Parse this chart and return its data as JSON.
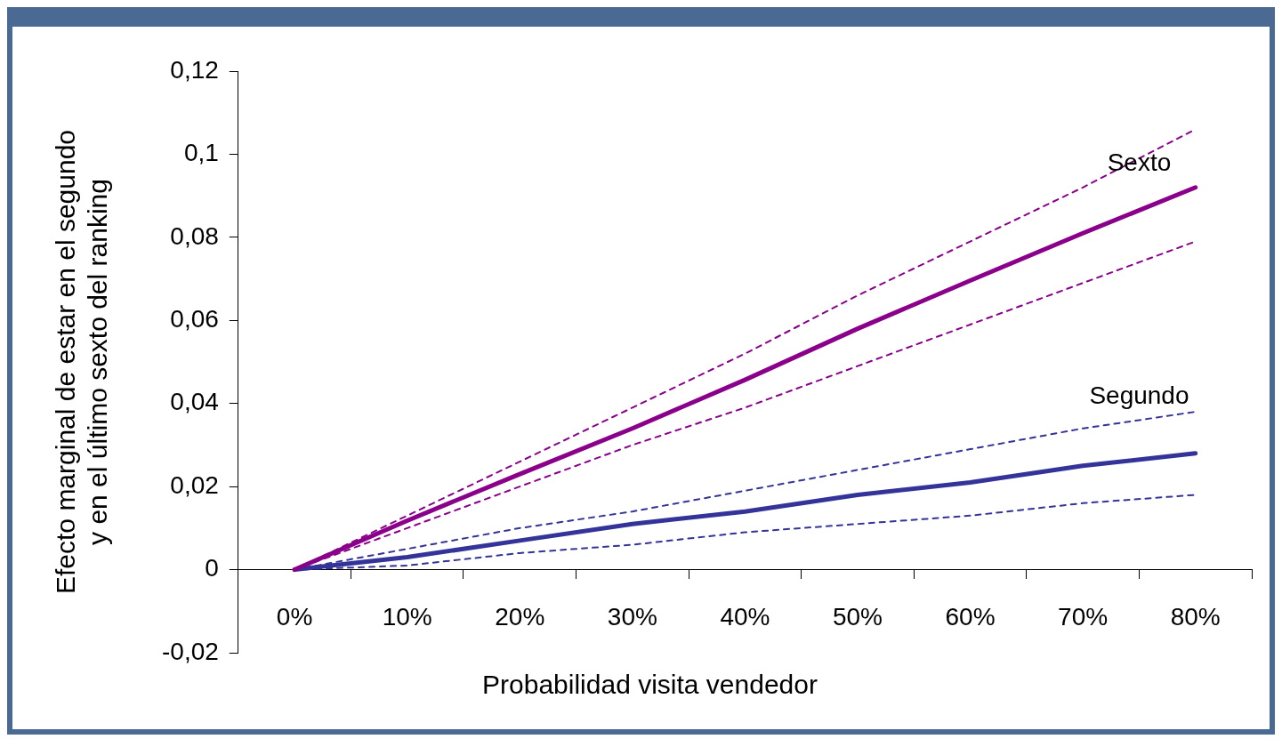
{
  "chart_data": {
    "type": "line",
    "xlabel": "Probabilidad visita vendedor",
    "ylabel": "Efecto marginal de estar en el segundo\ny en el último sexto del ranking",
    "categories": [
      "0%",
      "10%",
      "20%",
      "30%",
      "40%",
      "50%",
      "60%",
      "70%",
      "80%"
    ],
    "ylim": [
      -0.02,
      0.12
    ],
    "yticks": [
      {
        "value": -0.02,
        "label": "-0,02"
      },
      0,
      {
        "value": 0.02,
        "label": "0,02"
      },
      {
        "value": 0.04,
        "label": "0,04"
      },
      {
        "value": 0.06,
        "label": "0,06"
      },
      {
        "value": 0.08,
        "label": "0,08"
      },
      {
        "value": 0.1,
        "label": "0,1"
      },
      {
        "value": 0.12,
        "label": "0,12"
      }
    ],
    "grid": false,
    "legend": false,
    "marker": "none",
    "series": [
      {
        "color": "#8b008b",
        "line_style": "dashed",
        "values": [
          0,
          0.013,
          0.026,
          0.039,
          0.052,
          0.066,
          0.079,
          0.092,
          0.106
        ]
      },
      {
        "color": "#8b008b",
        "line_style": "dashed",
        "values": [
          0,
          0.01,
          0.02,
          0.03,
          0.039,
          0.049,
          0.059,
          0.069,
          0.079
        ]
      },
      {
        "name": "Sexto",
        "color": "#8b008b",
        "line_style": "solid",
        "values": [
          0,
          0.0118,
          0.023,
          0.034,
          0.0457,
          0.058,
          0.0696,
          0.081,
          0.092
        ]
      },
      {
        "color": "#333399",
        "line_style": "dashed",
        "values": [
          0,
          0.005,
          0.01,
          0.014,
          0.019,
          0.024,
          0.029,
          0.034,
          0.038
        ]
      },
      {
        "color": "#333399",
        "line_style": "dashed",
        "values": [
          0,
          0.001,
          0.004,
          0.006,
          0.009,
          0.011,
          0.013,
          0.016,
          0.018
        ]
      },
      {
        "name": "Segundo",
        "color": "#333399",
        "line_style": "solid",
        "values": [
          0,
          0.003,
          0.007,
          0.011,
          0.014,
          0.018,
          0.021,
          0.025,
          0.028
        ]
      }
    ]
  }
}
